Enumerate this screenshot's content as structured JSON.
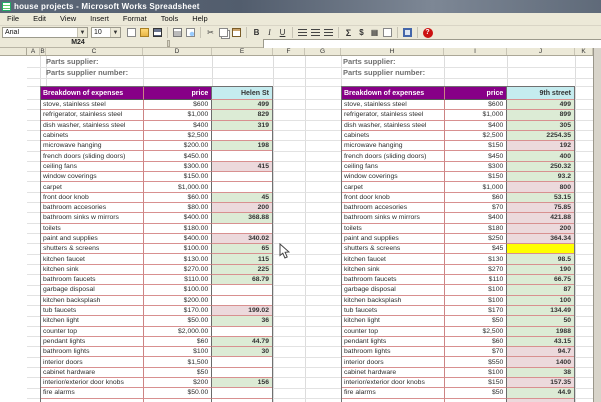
{
  "window": {
    "title": "house projects - Microsoft Works Spreadsheet"
  },
  "menu": {
    "items": [
      "File",
      "Edit",
      "View",
      "Insert",
      "Format",
      "Tools",
      "Help"
    ]
  },
  "toolbar": {
    "font_name": "Arial",
    "font_size": "10",
    "buttons": [
      {
        "name": "new-document-icon",
        "glyph": ""
      },
      {
        "name": "open-icon",
        "glyph": ""
      },
      {
        "name": "save-icon",
        "glyph": ""
      },
      {
        "name": "print-icon",
        "glyph": ""
      },
      {
        "name": "print-preview-icon",
        "glyph": ""
      },
      {
        "name": "cut-icon",
        "glyph": "✂"
      },
      {
        "name": "copy-icon",
        "glyph": ""
      },
      {
        "name": "paste-icon",
        "glyph": ""
      },
      {
        "name": "bold-icon",
        "glyph": "B"
      },
      {
        "name": "italic-icon",
        "glyph": "I"
      },
      {
        "name": "underline-icon",
        "glyph": "U"
      },
      {
        "name": "align-left-icon",
        "glyph": ""
      },
      {
        "name": "align-center-icon",
        "glyph": ""
      },
      {
        "name": "align-right-icon",
        "glyph": ""
      },
      {
        "name": "autosum-icon",
        "glyph": "Σ"
      },
      {
        "name": "currency-icon",
        "glyph": "$"
      },
      {
        "name": "easy-calc-icon",
        "glyph": "▦"
      },
      {
        "name": "chart-icon",
        "glyph": ""
      },
      {
        "name": "task-launcher-icon",
        "glyph": ""
      },
      {
        "name": "help-icon",
        "glyph": "?"
      }
    ]
  },
  "formula_bar": {
    "cell_ref": "M24",
    "formula": ""
  },
  "sheet": {
    "column_headers": [
      "A",
      "B",
      "C",
      "D",
      "E",
      "F",
      "G",
      "H",
      "I",
      "J",
      "K"
    ],
    "row_numbers": [
      11,
      12,
      13,
      14,
      15,
      16,
      17,
      18,
      19,
      20,
      21,
      22,
      23,
      24,
      25,
      26,
      27,
      28,
      29,
      30,
      31,
      32,
      33,
      34,
      35,
      36,
      37,
      38,
      39,
      40,
      41,
      42,
      43,
      44
    ]
  },
  "labels": {
    "supplier": "Parts supplier:",
    "supplier_number": "Parts supplier number:"
  },
  "colors": {
    "header_bg": "#870087",
    "header_text": "#ffffff",
    "location_bg": "#c5ecef",
    "under_bg": "#dcebd5",
    "over_bg": "#ecd9dc",
    "highlight_bg": "#ffff00"
  },
  "tables": [
    {
      "location": "Helen St",
      "header": {
        "title": "Breakdown of expenses",
        "price": "price"
      },
      "rows": [
        {
          "item": "stove, stainless steel",
          "price": "$600",
          "value": "499",
          "status": "under"
        },
        {
          "item": "refrigerator, stainless steel",
          "price": "$1,000",
          "value": "829",
          "status": "under"
        },
        {
          "item": "dish washer, stainless steel",
          "price": "$400",
          "value": "319",
          "status": "under"
        },
        {
          "item": "cabinets",
          "price": "$2,500",
          "value": "",
          "status": "none"
        },
        {
          "item": "microwave hanging",
          "price": "$200.00",
          "value": "198",
          "status": "under"
        },
        {
          "item": "french doors (sliding doors)",
          "price": "$450.00",
          "value": "",
          "status": "none"
        },
        {
          "item": "ceiling fans",
          "price": "$300.00",
          "value": "415",
          "status": "over"
        },
        {
          "item": "window coverings",
          "price": "$150.00",
          "value": "",
          "status": "none"
        },
        {
          "item": "carpet",
          "price": "$1,000.00",
          "value": "",
          "status": "none"
        },
        {
          "item": "front door knob",
          "price": "$60.00",
          "value": "45",
          "status": "under"
        },
        {
          "item": "bathroom accesories",
          "price": "$80.00",
          "value": "200",
          "status": "over"
        },
        {
          "item": "bathroom sinks w mirrors",
          "price": "$400.00",
          "value": "368.88",
          "status": "under"
        },
        {
          "item": "toilets",
          "price": "$180.00",
          "value": "",
          "status": "none"
        },
        {
          "item": "paint and supplies",
          "price": "$400.00",
          "value": "340.02",
          "status": "over"
        },
        {
          "item": "shutters & screens",
          "price": "$100.00",
          "value": "65",
          "status": "under"
        },
        {
          "item": "kitchen faucet",
          "price": "$130.00",
          "value": "115",
          "status": "under"
        },
        {
          "item": "kitchen sink",
          "price": "$270.00",
          "value": "225",
          "status": "under"
        },
        {
          "item": "bathroom faucets",
          "price": "$110.00",
          "value": "68.79",
          "status": "under"
        },
        {
          "item": "garbage disposal",
          "price": "$100.00",
          "value": "",
          "status": "none"
        },
        {
          "item": "kitchen backsplash",
          "price": "$200.00",
          "value": "",
          "status": "none"
        },
        {
          "item": "tub faucets",
          "price": "$170.00",
          "value": "199.02",
          "status": "over"
        },
        {
          "item": "kitchen light",
          "price": "$50.00",
          "value": "36",
          "status": "under"
        },
        {
          "item": "counter top",
          "price": "$2,000.00",
          "value": "",
          "status": "none"
        },
        {
          "item": "pendant lights",
          "price": "$60",
          "value": "44.79",
          "status": "under"
        },
        {
          "item": "bathroom lights",
          "price": "$100",
          "value": "30",
          "status": "under"
        },
        {
          "item": "interior doors",
          "price": "$1,500",
          "value": "",
          "status": "none"
        },
        {
          "item": "cabinet hardware",
          "price": "$50",
          "value": "",
          "status": "none"
        },
        {
          "item": "interior/exterior door knobs",
          "price": "$200",
          "value": "156",
          "status": "under"
        },
        {
          "item": "fire alarms",
          "price": "$50.00",
          "value": "",
          "status": "none"
        }
      ],
      "partial_row_status": "none"
    },
    {
      "location": "9th street",
      "header": {
        "title": "Breakdown of expenses",
        "price": "price"
      },
      "rows": [
        {
          "item": "stove, stainless steel",
          "price": "$600",
          "value": "499",
          "status": "under"
        },
        {
          "item": "refrigerator, stainless steel",
          "price": "$1,000",
          "value": "899",
          "status": "under"
        },
        {
          "item": "dish washer, stainless steel",
          "price": "$400",
          "value": "305",
          "status": "under"
        },
        {
          "item": "cabinets",
          "price": "$2,500",
          "value": "2254.35",
          "status": "under"
        },
        {
          "item": "microwave hanging",
          "price": "$150",
          "value": "192",
          "status": "over"
        },
        {
          "item": "french doors (sliding doors)",
          "price": "$450",
          "value": "400",
          "status": "under"
        },
        {
          "item": "ceiling fans",
          "price": "$300",
          "value": "250.32",
          "status": "under"
        },
        {
          "item": "window coverings",
          "price": "$150",
          "value": "93.2",
          "status": "under"
        },
        {
          "item": "carpet",
          "price": "$1,000",
          "value": "800",
          "status": "over"
        },
        {
          "item": "front door knob",
          "price": "$60",
          "value": "53.15",
          "status": "under"
        },
        {
          "item": "bathroom accesories",
          "price": "$70",
          "value": "75.85",
          "status": "over"
        },
        {
          "item": "bathroom sinks w mirrors",
          "price": "$400",
          "value": "421.88",
          "status": "over"
        },
        {
          "item": "toilets",
          "price": "$180",
          "value": "200",
          "status": "over"
        },
        {
          "item": "paint and supplies",
          "price": "$250",
          "value": "364.34",
          "status": "over"
        },
        {
          "item": "shutters & screens",
          "price": "$45",
          "value": "",
          "status": "highlight"
        },
        {
          "item": "kitchen faucet",
          "price": "$130",
          "value": "98.5",
          "status": "under"
        },
        {
          "item": "kitchen sink",
          "price": "$270",
          "value": "190",
          "status": "under"
        },
        {
          "item": "bathroom faucets",
          "price": "$110",
          "value": "66.75",
          "status": "under"
        },
        {
          "item": "garbage disposal",
          "price": "$100",
          "value": "87",
          "status": "under"
        },
        {
          "item": "kitchen backsplash",
          "price": "$100",
          "value": "100",
          "status": "under"
        },
        {
          "item": "tub faucets",
          "price": "$170",
          "value": "134.49",
          "status": "under"
        },
        {
          "item": "kitchen light",
          "price": "$50",
          "value": "50",
          "status": "under"
        },
        {
          "item": "counter top",
          "price": "$2,500",
          "value": "1988",
          "status": "under"
        },
        {
          "item": "pendant lights",
          "price": "$60",
          "value": "43.15",
          "status": "under"
        },
        {
          "item": "bathroom lights",
          "price": "$70",
          "value": "94.7",
          "status": "over"
        },
        {
          "item": "interior doors",
          "price": "$550",
          "value": "1400",
          "status": "over"
        },
        {
          "item": "cabinet hardware",
          "price": "$100",
          "value": "38",
          "status": "under"
        },
        {
          "item": "interior/exterior door knobs",
          "price": "$150",
          "value": "157.35",
          "status": "over"
        },
        {
          "item": "fire alarms",
          "price": "$50",
          "value": "44.9",
          "status": "under"
        }
      ],
      "partial_row_status": "over"
    }
  ]
}
